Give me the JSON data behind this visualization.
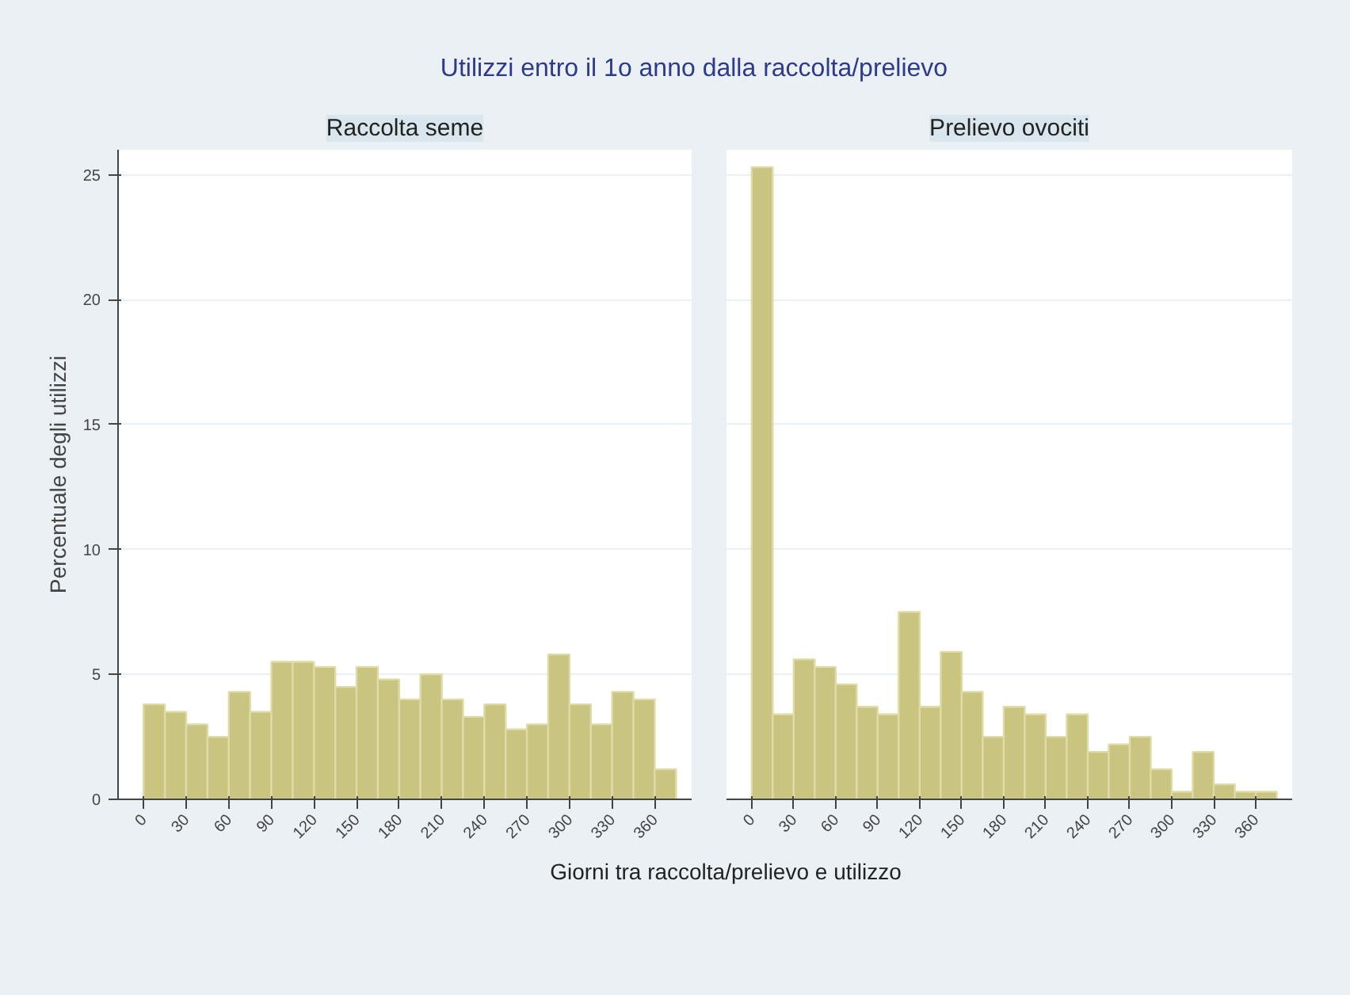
{
  "chart_data": [
    {
      "type": "histogram",
      "title": "Raccolta seme",
      "annotations": [
        "Utilizzi entro il 1o anno dalla raccolta/prelievo"
      ],
      "xlabel": "Giorni tra raccolta/prelievo e utilizzo",
      "ylabel": "Percentuale degli utilizzi",
      "color": "#c9c47f",
      "bins": [
        0,
        15,
        30,
        45,
        60,
        75,
        90,
        105,
        120,
        135,
        150,
        165,
        180,
        195,
        210,
        225,
        240,
        255,
        270,
        285,
        300,
        315,
        330,
        345,
        360,
        375
      ],
      "values": [
        3.8,
        3.5,
        3.0,
        2.5,
        4.3,
        3.5,
        5.5,
        5.5,
        5.3,
        4.5,
        5.3,
        4.8,
        4.0,
        5.0,
        4.0,
        3.3,
        3.8,
        2.8,
        3.0,
        5.8,
        3.8,
        3.0,
        4.3,
        4.0,
        1.2
      ],
      "xlim": [
        -18,
        386
      ],
      "ylim": [
        0,
        26
      ],
      "xticks": [
        0,
        30,
        60,
        90,
        120,
        150,
        180,
        210,
        240,
        270,
        300,
        330,
        360
      ],
      "yticks": [
        0,
        5,
        10,
        15,
        20,
        25
      ],
      "grid": "y"
    },
    {
      "type": "histogram",
      "title": "Prelievo ovociti",
      "color": "#c9c47f",
      "bins": [
        0,
        15,
        30,
        45,
        60,
        75,
        90,
        105,
        120,
        135,
        150,
        165,
        180,
        195,
        210,
        225,
        240,
        255,
        270,
        285,
        300,
        315,
        330,
        345,
        360,
        375
      ],
      "values": [
        25.3,
        3.4,
        5.6,
        5.3,
        4.6,
        3.7,
        3.4,
        7.5,
        3.7,
        5.9,
        4.3,
        2.5,
        3.7,
        3.4,
        2.5,
        3.4,
        1.9,
        2.2,
        2.5,
        1.2,
        0.3,
        1.9,
        0.6,
        0.3,
        0.3
      ],
      "xlim": [
        -18,
        386
      ],
      "ylim": [
        0,
        26
      ],
      "xticks": [
        0,
        30,
        60,
        90,
        120,
        150,
        180,
        210,
        240,
        270,
        300,
        330,
        360
      ],
      "yticks": [
        0,
        5,
        10,
        15,
        20,
        25
      ],
      "grid": "y",
      "tick_labels": "x"
    }
  ]
}
